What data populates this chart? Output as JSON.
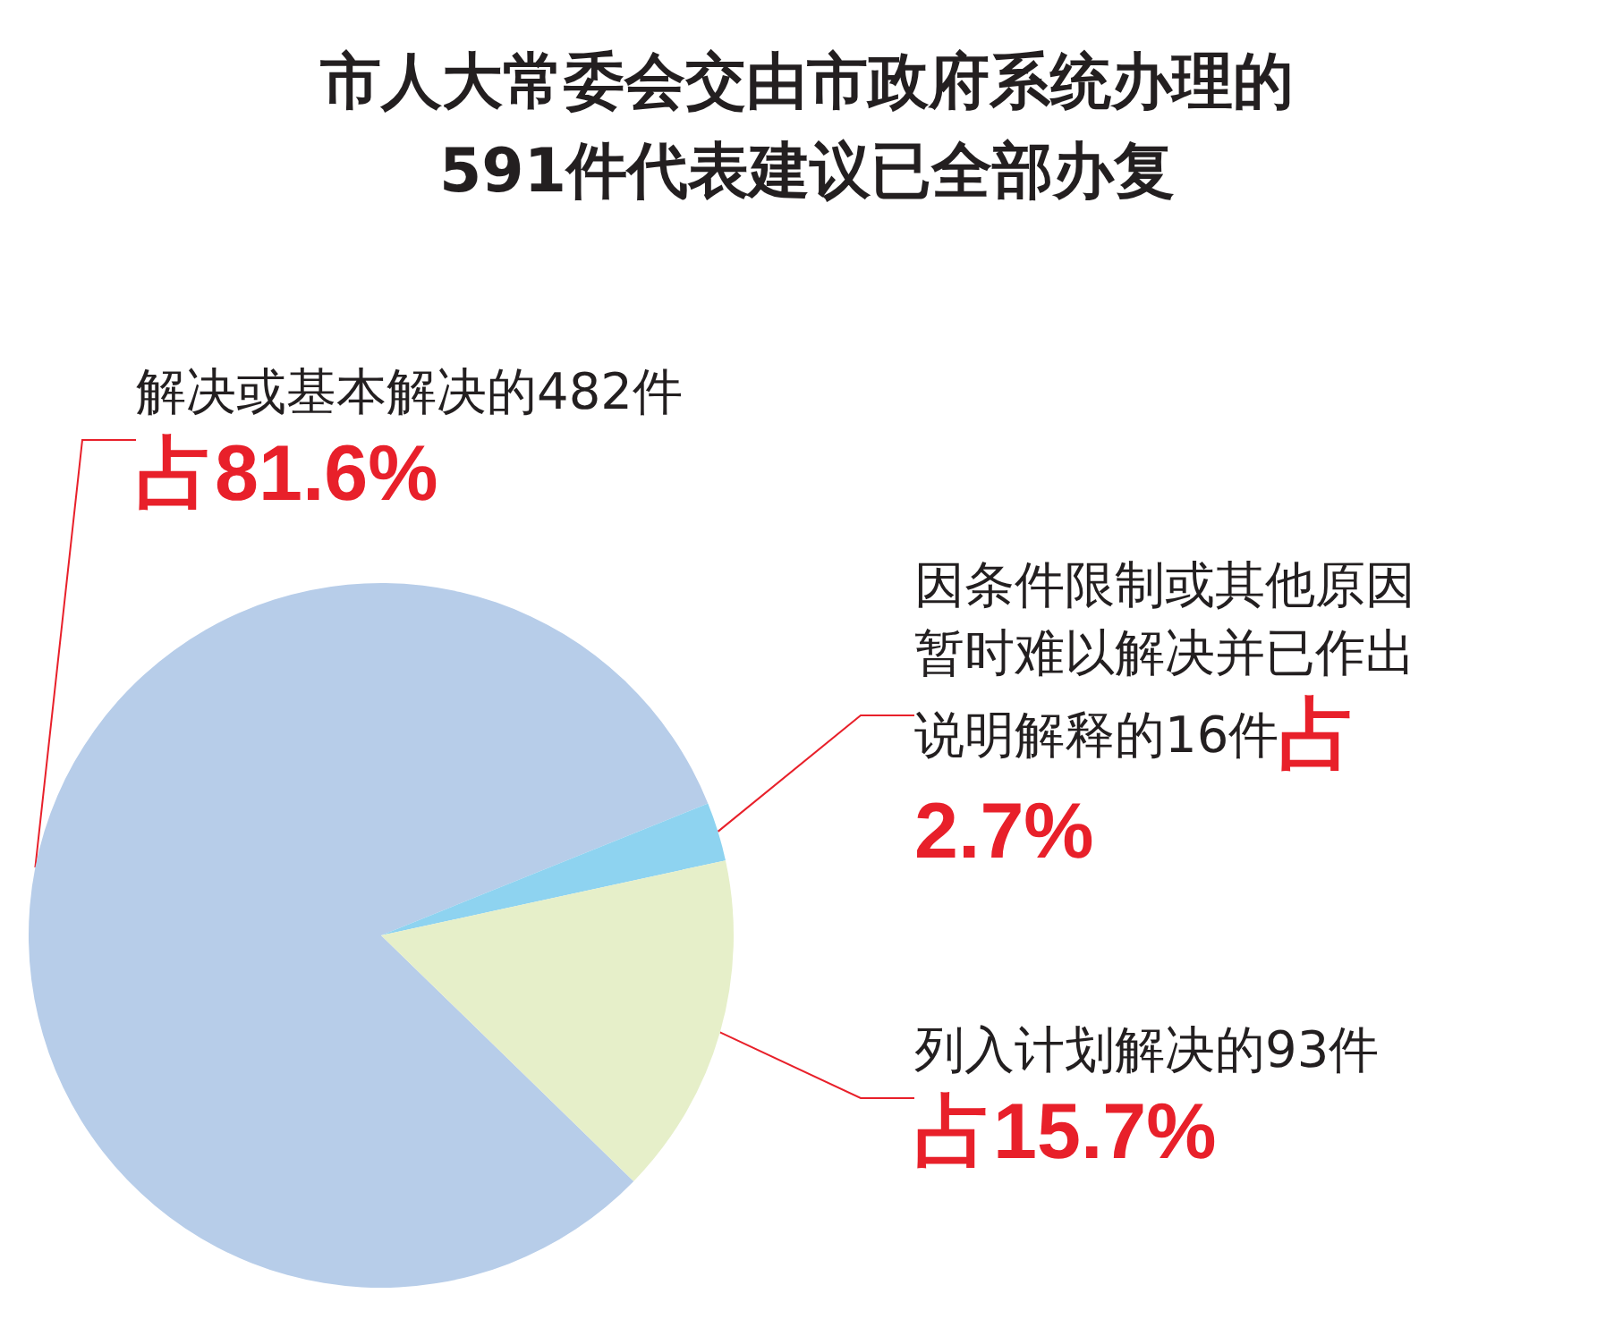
{
  "chart_data": {
    "type": "pie",
    "title": "市人大常委会交由市政府系统办理的\n591件代表建议已全部办复",
    "categories": [
      "解决或基本解决的482件",
      "因条件限制或其他原因暂时难以解决并已作出说明解释的16件",
      "列入计划解决的93件"
    ],
    "values": [
      81.6,
      2.7,
      15.7
    ],
    "colors": [
      "#b7cde9",
      "#8ed3f0",
      "#e6efc9"
    ],
    "value_labels": [
      "占81.6%",
      "占2.7%",
      "占15.7%"
    ]
  }
}
